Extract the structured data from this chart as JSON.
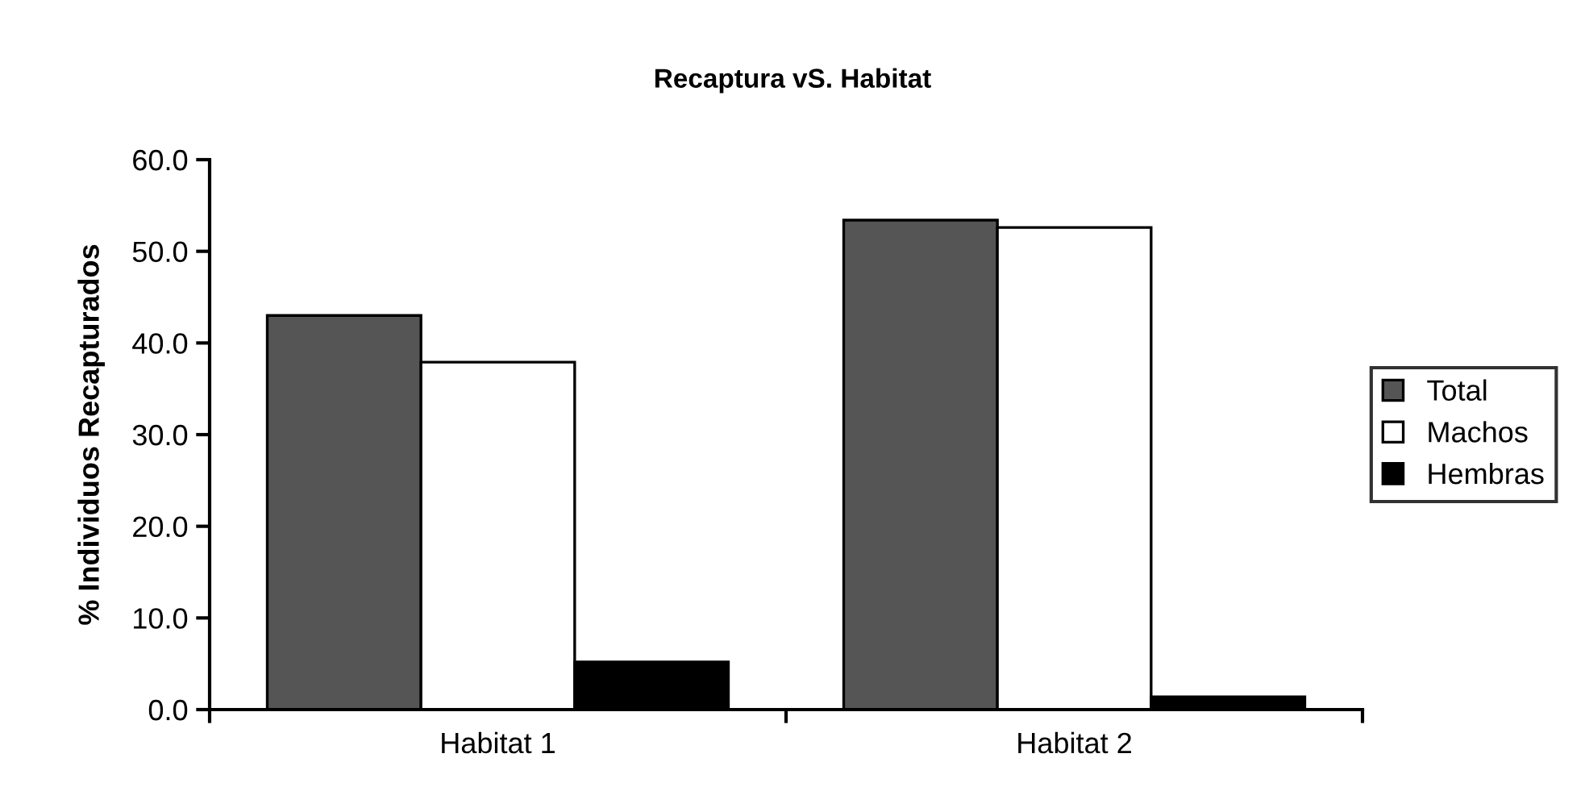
{
  "chart_data": {
    "type": "bar",
    "title": "Recaptura vS. Habitat",
    "ylabel": "% Individuos Recapturados",
    "categories": [
      "Habitat 1",
      "Habitat 2"
    ],
    "series": [
      {
        "name": "Total",
        "color": "#555555",
        "values": [
          43.0,
          53.4
        ]
      },
      {
        "name": "Machos",
        "color": "#ffffff",
        "values": [
          37.9,
          52.6
        ]
      },
      {
        "name": "Hembras",
        "color": "#000000",
        "values": [
          5.2,
          1.4
        ]
      }
    ],
    "ylim": [
      0,
      60
    ],
    "yticks": [
      {
        "value": 0,
        "label": "0.0"
      },
      {
        "value": 10,
        "label": "10.0"
      },
      {
        "value": 20,
        "label": "20.0"
      },
      {
        "value": 30,
        "label": "30.0"
      },
      {
        "value": 40,
        "label": "40.0"
      },
      {
        "value": 50,
        "label": "50.0"
      },
      {
        "value": 60,
        "label": "60.0"
      }
    ],
    "grid": false,
    "legend": "right"
  }
}
